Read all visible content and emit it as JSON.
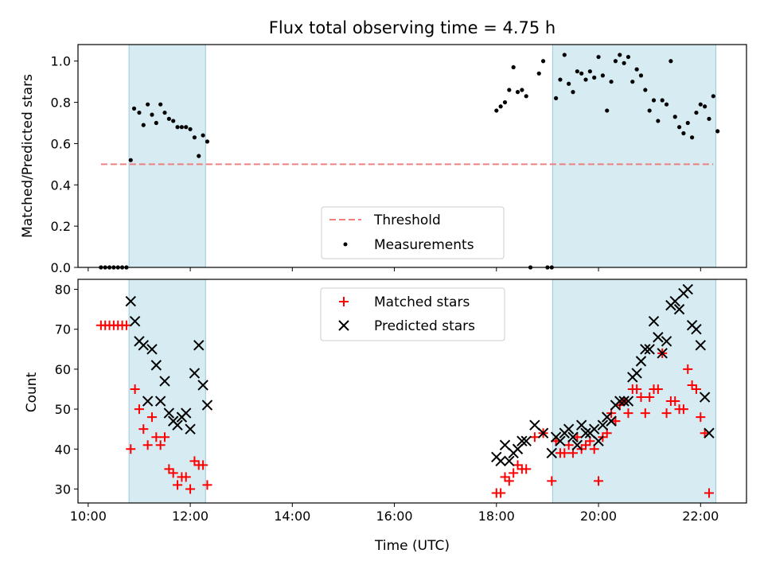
{
  "chart_data": [
    {
      "type": "scatter",
      "title": "Flux total observing time = 4.75 h",
      "xlabel": "",
      "ylabel": "Matched/Predicted stars",
      "xlim": [
        "09:48",
        "22:54"
      ],
      "ylim": [
        0,
        1.08
      ],
      "yticks": [
        0.0,
        0.2,
        0.4,
        0.6,
        0.8,
        1.0
      ],
      "ytick_labels": [
        "0.0",
        "0.2",
        "0.4",
        "0.6",
        "0.8",
        "1.0"
      ],
      "shaded_intervals": [
        [
          "10:48",
          "12:18"
        ],
        [
          "19:06",
          "22:18"
        ]
      ],
      "legend_position": "lower center",
      "threshold": {
        "name": "Threshold",
        "value": 0.5,
        "x_range": [
          "10:15",
          "22:15"
        ],
        "color": "#f08080"
      },
      "series": [
        {
          "name": "Measurements",
          "color": "#000000",
          "points": [
            [
              "10:15",
              0
            ],
            [
              "10:20",
              0
            ],
            [
              "10:25",
              0
            ],
            [
              "10:30",
              0
            ],
            [
              "10:35",
              0
            ],
            [
              "10:40",
              0
            ],
            [
              "10:45",
              0
            ],
            [
              "10:50",
              0.52
            ],
            [
              "10:54",
              0.77
            ],
            [
              "11:00",
              0.75
            ],
            [
              "11:05",
              0.69
            ],
            [
              "11:10",
              0.79
            ],
            [
              "11:15",
              0.74
            ],
            [
              "11:20",
              0.7
            ],
            [
              "11:25",
              0.79
            ],
            [
              "11:30",
              0.75
            ],
            [
              "11:35",
              0.72
            ],
            [
              "11:40",
              0.71
            ],
            [
              "11:45",
              0.68
            ],
            [
              "11:50",
              0.68
            ],
            [
              "11:55",
              0.68
            ],
            [
              "12:00",
              0.67
            ],
            [
              "12:05",
              0.63
            ],
            [
              "12:10",
              0.54
            ],
            [
              "12:15",
              0.64
            ],
            [
              "12:20",
              0.61
            ],
            [
              "18:00",
              0.76
            ],
            [
              "18:05",
              0.78
            ],
            [
              "18:10",
              0.8
            ],
            [
              "18:15",
              0.86
            ],
            [
              "18:20",
              0.97
            ],
            [
              "18:25",
              0.85
            ],
            [
              "18:30",
              0.86
            ],
            [
              "18:35",
              0.83
            ],
            [
              "18:40",
              0
            ],
            [
              "18:50",
              0.94
            ],
            [
              "18:55",
              1.0
            ],
            [
              "19:00",
              0
            ],
            [
              "19:05",
              0
            ],
            [
              "19:10",
              0.82
            ],
            [
              "19:15",
              0.91
            ],
            [
              "19:20",
              1.03
            ],
            [
              "19:25",
              0.89
            ],
            [
              "19:30",
              0.85
            ],
            [
              "19:35",
              0.95
            ],
            [
              "19:40",
              0.94
            ],
            [
              "19:45",
              0.91
            ],
            [
              "19:50",
              0.95
            ],
            [
              "19:55",
              0.92
            ],
            [
              "20:00",
              1.02
            ],
            [
              "20:05",
              0.93
            ],
            [
              "20:10",
              0.76
            ],
            [
              "20:15",
              0.9
            ],
            [
              "20:20",
              1.0
            ],
            [
              "20:25",
              1.03
            ],
            [
              "20:30",
              0.99
            ],
            [
              "20:35",
              1.02
            ],
            [
              "20:40",
              0.9
            ],
            [
              "20:45",
              0.96
            ],
            [
              "20:50",
              0.93
            ],
            [
              "20:55",
              0.86
            ],
            [
              "21:00",
              0.76
            ],
            [
              "21:05",
              0.81
            ],
            [
              "21:10",
              0.71
            ],
            [
              "21:15",
              0.81
            ],
            [
              "21:20",
              0.79
            ],
            [
              "21:25",
              1.0
            ],
            [
              "21:30",
              0.73
            ],
            [
              "21:35",
              0.68
            ],
            [
              "21:40",
              0.65
            ],
            [
              "21:45",
              0.7
            ],
            [
              "21:50",
              0.63
            ],
            [
              "21:55",
              0.75
            ],
            [
              "22:00",
              0.79
            ],
            [
              "22:05",
              0.78
            ],
            [
              "22:10",
              0.72
            ],
            [
              "22:15",
              0.83
            ],
            [
              "22:20",
              0.66
            ]
          ]
        }
      ]
    },
    {
      "type": "scatter",
      "title": "",
      "xlabel": "Time (UTC)",
      "ylabel": "Count",
      "xlim": [
        "09:48",
        "22:54"
      ],
      "ylim": [
        26.5,
        82.5
      ],
      "yticks": [
        30,
        40,
        50,
        60,
        70,
        80
      ],
      "ytick_labels": [
        "30",
        "40",
        "50",
        "60",
        "70",
        "80"
      ],
      "xticks": [
        "10:00",
        "12:00",
        "14:00",
        "16:00",
        "18:00",
        "20:00",
        "22:00"
      ],
      "xtick_labels": [
        "10:00",
        "12:00",
        "14:00",
        "16:00",
        "18:00",
        "20:00",
        "22:00"
      ],
      "shaded_intervals": [
        [
          "10:48",
          "12:18"
        ],
        [
          "19:06",
          "22:18"
        ]
      ],
      "legend_position": "upper center",
      "series": [
        {
          "name": "Matched stars",
          "color": "#ff0000",
          "marker": "+",
          "points": [
            [
              "10:15",
              71
            ],
            [
              "10:20",
              71
            ],
            [
              "10:25",
              71
            ],
            [
              "10:30",
              71
            ],
            [
              "10:35",
              71
            ],
            [
              "10:40",
              71
            ],
            [
              "10:45",
              71
            ],
            [
              "10:50",
              40
            ],
            [
              "10:55",
              55
            ],
            [
              "11:00",
              50
            ],
            [
              "11:05",
              45
            ],
            [
              "11:10",
              41
            ],
            [
              "11:15",
              48
            ],
            [
              "11:20",
              43
            ],
            [
              "11:25",
              41
            ],
            [
              "11:30",
              43
            ],
            [
              "11:35",
              35
            ],
            [
              "11:40",
              34
            ],
            [
              "11:45",
              31
            ],
            [
              "11:50",
              33
            ],
            [
              "11:55",
              33
            ],
            [
              "12:00",
              30
            ],
            [
              "12:05",
              37
            ],
            [
              "12:10",
              36
            ],
            [
              "12:15",
              36
            ],
            [
              "12:20",
              31
            ],
            [
              "18:00",
              29
            ],
            [
              "18:05",
              29
            ],
            [
              "18:10",
              33
            ],
            [
              "18:15",
              32
            ],
            [
              "18:20",
              34
            ],
            [
              "18:25",
              36
            ],
            [
              "18:30",
              35
            ],
            [
              "18:35",
              35
            ],
            [
              "18:45",
              43
            ],
            [
              "18:55",
              44
            ],
            [
              "19:05",
              32
            ],
            [
              "19:10",
              42
            ],
            [
              "19:15",
              39
            ],
            [
              "19:20",
              39
            ],
            [
              "19:25",
              41
            ],
            [
              "19:30",
              39
            ],
            [
              "19:35",
              43
            ],
            [
              "19:40",
              40
            ],
            [
              "19:45",
              41
            ],
            [
              "19:50",
              42
            ],
            [
              "19:55",
              40
            ],
            [
              "20:00",
              32
            ],
            [
              "20:05",
              43
            ],
            [
              "20:10",
              44
            ],
            [
              "20:15",
              49
            ],
            [
              "20:20",
              47
            ],
            [
              "20:25",
              51
            ],
            [
              "20:30",
              52
            ],
            [
              "20:35",
              49
            ],
            [
              "20:40",
              55
            ],
            [
              "20:45",
              55
            ],
            [
              "20:50",
              53
            ],
            [
              "20:55",
              49
            ],
            [
              "21:00",
              53
            ],
            [
              "21:05",
              55
            ],
            [
              "21:10",
              55
            ],
            [
              "21:15",
              64
            ],
            [
              "21:20",
              49
            ],
            [
              "21:25",
              52
            ],
            [
              "21:30",
              52
            ],
            [
              "21:35",
              50
            ],
            [
              "21:40",
              50
            ],
            [
              "21:45",
              60
            ],
            [
              "21:50",
              56
            ],
            [
              "21:55",
              55
            ],
            [
              "22:00",
              48
            ],
            [
              "22:05",
              44
            ],
            [
              "22:10",
              29
            ]
          ]
        },
        {
          "name": "Predicted stars",
          "color": "#000000",
          "marker": "x",
          "points": [
            [
              "10:50",
              77
            ],
            [
              "10:55",
              72
            ],
            [
              "11:00",
              67
            ],
            [
              "11:05",
              66
            ],
            [
              "11:10",
              52
            ],
            [
              "11:15",
              65
            ],
            [
              "11:20",
              61
            ],
            [
              "11:25",
              52
            ],
            [
              "11:30",
              57
            ],
            [
              "11:35",
              49
            ],
            [
              "11:40",
              47
            ],
            [
              "11:45",
              46
            ],
            [
              "11:50",
              48
            ],
            [
              "11:55",
              49
            ],
            [
              "12:00",
              45
            ],
            [
              "12:05",
              59
            ],
            [
              "12:10",
              66
            ],
            [
              "12:15",
              56
            ],
            [
              "12:20",
              51
            ],
            [
              "18:00",
              38
            ],
            [
              "18:05",
              37
            ],
            [
              "18:10",
              41
            ],
            [
              "18:15",
              37
            ],
            [
              "18:20",
              39
            ],
            [
              "18:25",
              40
            ],
            [
              "18:30",
              42
            ],
            [
              "18:35",
              42
            ],
            [
              "18:45",
              46
            ],
            [
              "18:55",
              44
            ],
            [
              "19:05",
              39
            ],
            [
              "19:10",
              43
            ],
            [
              "19:15",
              42
            ],
            [
              "19:20",
              44
            ],
            [
              "19:25",
              45
            ],
            [
              "19:30",
              43
            ],
            [
              "19:35",
              41
            ],
            [
              "19:40",
              46
            ],
            [
              "19:45",
              44
            ],
            [
              "19:50",
              44
            ],
            [
              "19:55",
              45
            ],
            [
              "20:00",
              42
            ],
            [
              "20:05",
              46
            ],
            [
              "20:10",
              48
            ],
            [
              "20:15",
              47
            ],
            [
              "20:20",
              51
            ],
            [
              "20:25",
              52
            ],
            [
              "20:30",
              52
            ],
            [
              "20:35",
              52
            ],
            [
              "20:40",
              58
            ],
            [
              "20:45",
              59
            ],
            [
              "20:50",
              62
            ],
            [
              "20:55",
              65
            ],
            [
              "21:00",
              65
            ],
            [
              "21:05",
              72
            ],
            [
              "21:10",
              68
            ],
            [
              "21:15",
              64
            ],
            [
              "21:20",
              67
            ],
            [
              "21:25",
              76
            ],
            [
              "21:30",
              77
            ],
            [
              "21:35",
              75
            ],
            [
              "21:40",
              79
            ],
            [
              "21:45",
              80
            ],
            [
              "21:50",
              71
            ],
            [
              "21:55",
              70
            ],
            [
              "22:00",
              66
            ],
            [
              "22:05",
              53
            ],
            [
              "22:10",
              44
            ]
          ]
        }
      ]
    }
  ]
}
